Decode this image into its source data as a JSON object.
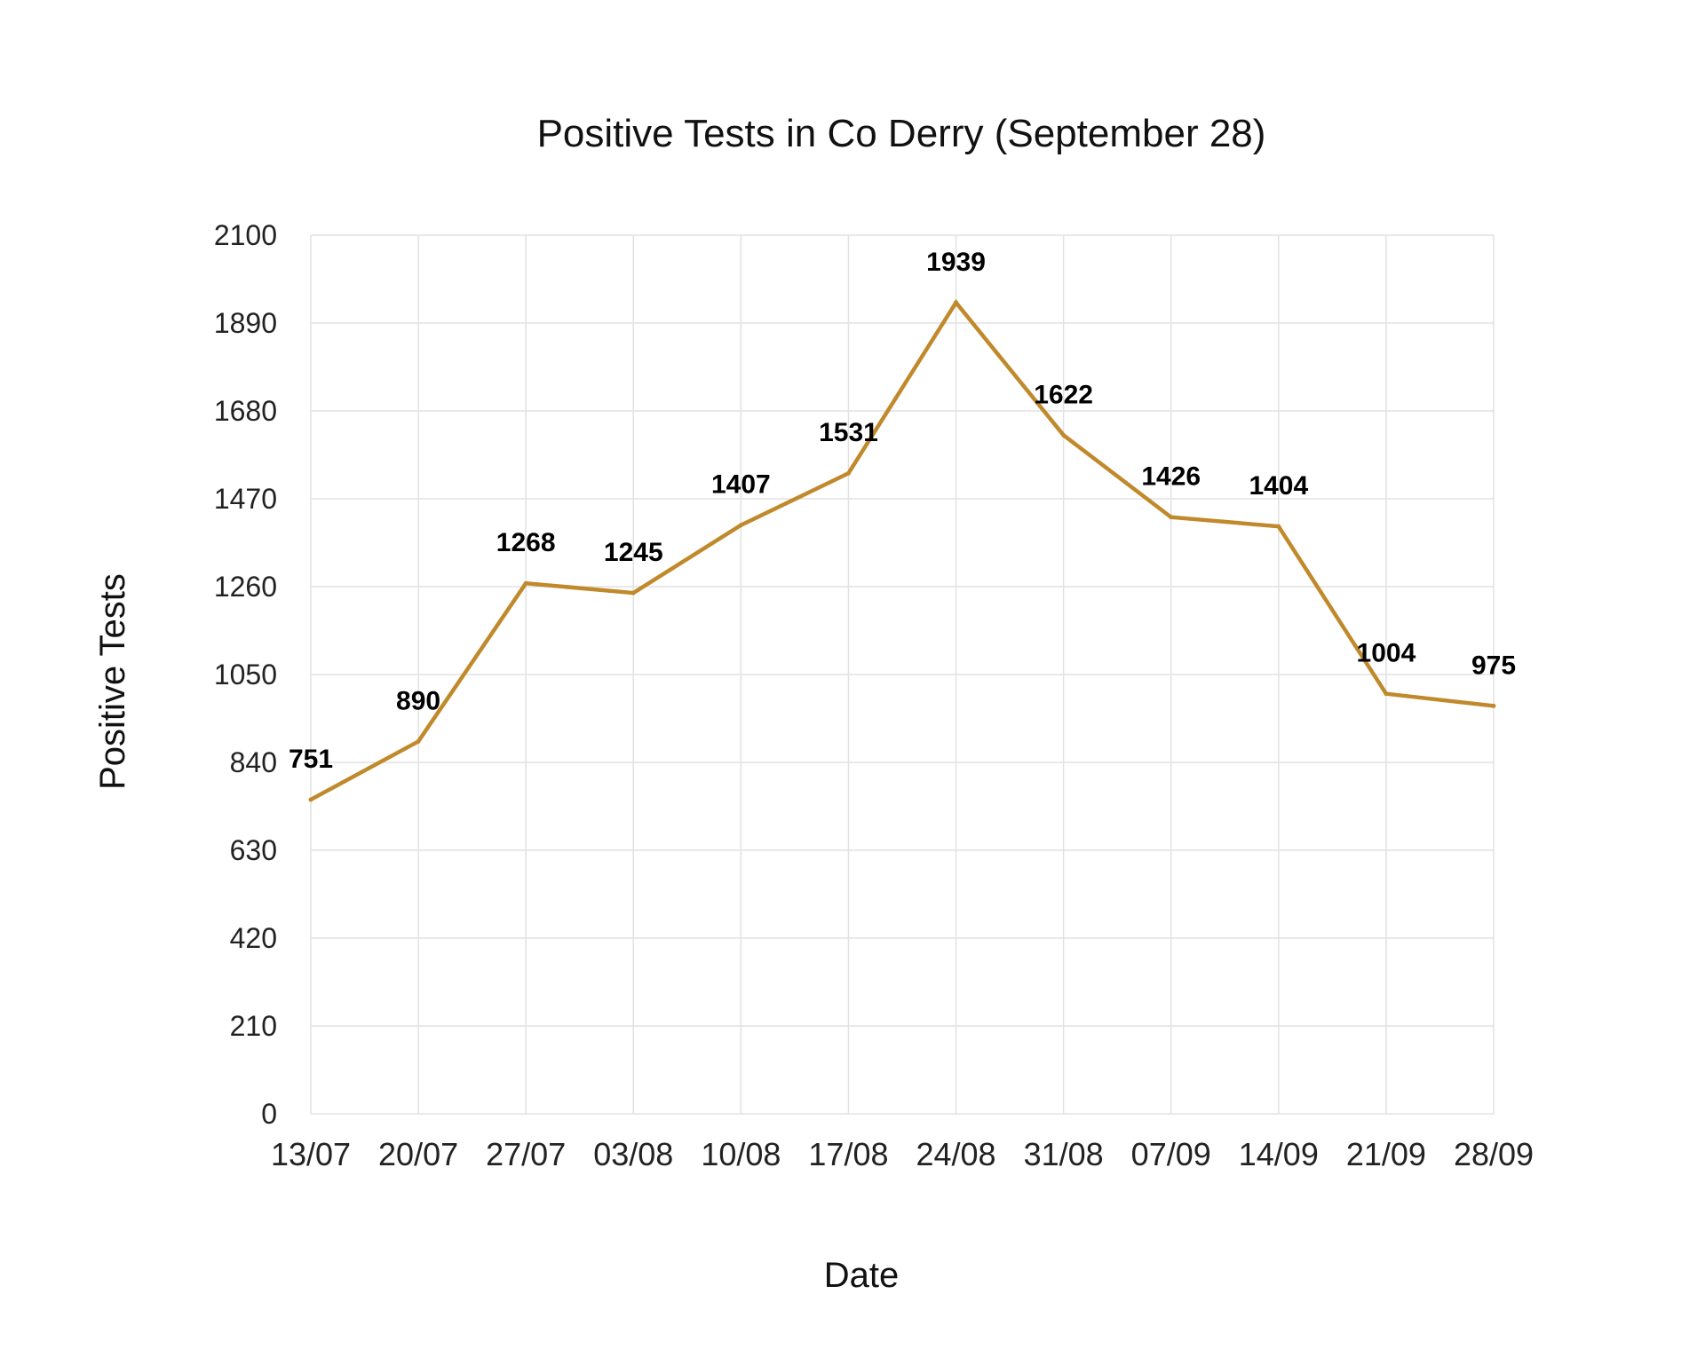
{
  "chart_data": {
    "type": "line",
    "title": "Positive Tests in Co Derry (September 28)",
    "xlabel": "Date",
    "ylabel": "Positive Tests",
    "categories": [
      "13/07",
      "20/07",
      "27/07",
      "03/08",
      "10/08",
      "17/08",
      "24/08",
      "31/08",
      "07/09",
      "14/09",
      "21/09",
      "28/09"
    ],
    "series": [
      {
        "values": [
          751,
          890,
          1268,
          1245,
          1407,
          1531,
          1939,
          1622,
          1426,
          1404,
          1004,
          975
        ],
        "color": "#c08a2c"
      }
    ],
    "ylim": [
      0,
      2100
    ],
    "yticks": [
      0,
      210,
      420,
      630,
      840,
      1050,
      1260,
      1470,
      1680,
      1890,
      2100
    ],
    "data_labels": [
      "751",
      "890",
      "1268",
      "1245",
      "1407",
      "1531",
      "1939",
      "1622",
      "1426",
      "1404",
      "1004",
      "975"
    ],
    "grid": true,
    "legend": "none"
  }
}
